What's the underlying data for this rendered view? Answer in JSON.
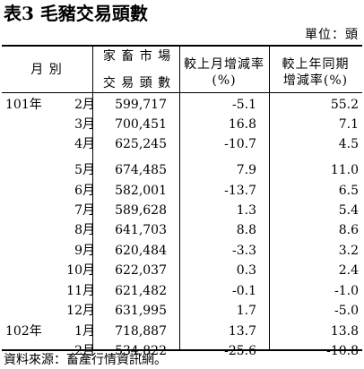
{
  "title": "表3  毛豬交易頭數",
  "unit": "單位：頭",
  "header": {
    "period": "月  別",
    "volume_line1": "家 畜 市 場",
    "volume_line2": "交 易 頭 數",
    "mom_line1": "較上月增減率",
    "mom_line2": "(%)",
    "yoy_line1": "較上年同期",
    "yoy_line2": "增減率(%)"
  },
  "rows": [
    {
      "year": "101年",
      "month": "2月",
      "volume": "599,717",
      "mom": "-5.1",
      "yoy": "55.2"
    },
    {
      "year": "",
      "month": "3月",
      "volume": "700,451",
      "mom": "16.8",
      "yoy": "7.1"
    },
    {
      "year": "",
      "month": "4月",
      "volume": "625,245",
      "mom": "-10.7",
      "yoy": "4.5"
    },
    {
      "year": "",
      "month": "5月",
      "volume": "674,485",
      "mom": "7.9",
      "yoy": "11.0"
    },
    {
      "year": "",
      "month": "6月",
      "volume": "582,001",
      "mom": "-13.7",
      "yoy": "6.5"
    },
    {
      "year": "",
      "month": "7月",
      "volume": "589,628",
      "mom": "1.3",
      "yoy": "5.4"
    },
    {
      "year": "",
      "month": "8月",
      "volume": "641,703",
      "mom": "8.8",
      "yoy": "8.6"
    },
    {
      "year": "",
      "month": "9月",
      "volume": "620,484",
      "mom": "-3.3",
      "yoy": "3.2"
    },
    {
      "year": "",
      "month": "10月",
      "volume": "622,037",
      "mom": "0.3",
      "yoy": "2.4"
    },
    {
      "year": "",
      "month": "11月",
      "volume": "621,482",
      "mom": "-0.1",
      "yoy": "-1.0"
    },
    {
      "year": "",
      "month": "12月",
      "volume": "631,995",
      "mom": "1.7",
      "yoy": "-5.0"
    },
    {
      "year": "102年",
      "month": "1月",
      "volume": "718,887",
      "mom": "13.7",
      "yoy": "13.8"
    },
    {
      "year": "",
      "month": "2月",
      "volume": "534,822",
      "mom": "-25.6",
      "yoy": "-10.8"
    }
  ],
  "source": "資料來源：畜產行情資訊網。"
}
